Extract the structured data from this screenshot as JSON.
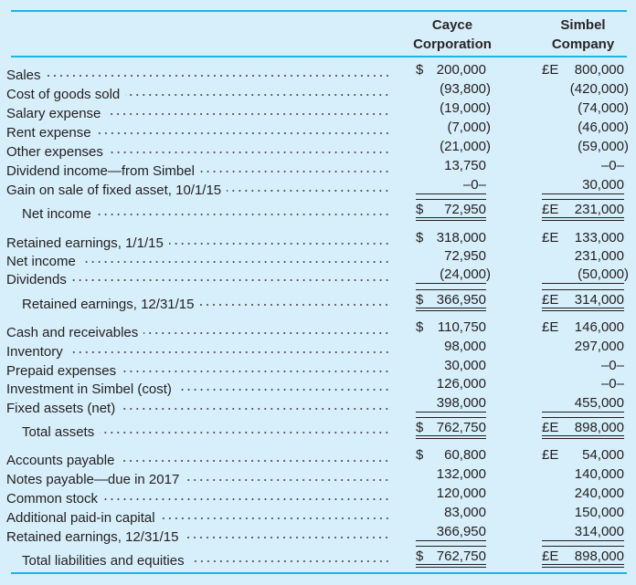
{
  "header": {
    "col1": [
      "Cayce",
      "Corporation"
    ],
    "col2": [
      "Simbel",
      "Company"
    ]
  },
  "rows": [
    {
      "label": "Sales",
      "c1": {
        "cur": "$",
        "amt": "200,000"
      },
      "c2": {
        "cur": "£E",
        "amt": "800,000"
      }
    },
    {
      "label": "Cost of goods sold",
      "c1": {
        "cur": "",
        "amt": "(93,800)"
      },
      "c2": {
        "cur": "",
        "amt": "(420,000)"
      }
    },
    {
      "label": "Salary expense",
      "c1": {
        "cur": "",
        "amt": "(19,000)"
      },
      "c2": {
        "cur": "",
        "amt": "(74,000)"
      }
    },
    {
      "label": "Rent expense",
      "c1": {
        "cur": "",
        "amt": "(7,000)"
      },
      "c2": {
        "cur": "",
        "amt": "(46,000)"
      }
    },
    {
      "label": "Other expenses",
      "c1": {
        "cur": "",
        "amt": "(21,000)"
      },
      "c2": {
        "cur": "",
        "amt": "(59,000)"
      }
    },
    {
      "label": "Dividend income—from Simbel",
      "c1": {
        "cur": "",
        "amt": "13,750"
      },
      "c2": {
        "cur": "",
        "amt": "–0–"
      }
    },
    {
      "label": "Gain on sale of fixed asset, 10/1/15",
      "c1": {
        "cur": "",
        "amt": "–0–"
      },
      "c2": {
        "cur": "",
        "amt": "30,000"
      }
    },
    {
      "label": "Net income",
      "style": "total",
      "c1": {
        "cur": "$",
        "amt": "72,950"
      },
      "c2": {
        "cur": "£E",
        "amt": "231,000"
      }
    },
    {
      "label": "Retained earnings, 1/1/15",
      "c1": {
        "cur": "$",
        "amt": "318,000"
      },
      "c2": {
        "cur": "£E",
        "amt": "133,000"
      }
    },
    {
      "label": "Net income",
      "c1": {
        "cur": "",
        "amt": "72,950"
      },
      "c2": {
        "cur": "",
        "amt": "231,000"
      }
    },
    {
      "label": "Dividends",
      "c1": {
        "cur": "",
        "amt": "(24,000)"
      },
      "c2": {
        "cur": "",
        "amt": "(50,000)"
      }
    },
    {
      "label": "Retained earnings, 12/31/15",
      "style": "total",
      "c1": {
        "cur": "$",
        "amt": "366,950"
      },
      "c2": {
        "cur": "£E",
        "amt": "314,000"
      }
    },
    {
      "label": "Cash and receivables",
      "c1": {
        "cur": "$",
        "amt": "110,750"
      },
      "c2": {
        "cur": "£E",
        "amt": "146,000"
      }
    },
    {
      "label": "Inventory",
      "c1": {
        "cur": "",
        "amt": "98,000"
      },
      "c2": {
        "cur": "",
        "amt": "297,000"
      }
    },
    {
      "label": "Prepaid expenses",
      "c1": {
        "cur": "",
        "amt": "30,000"
      },
      "c2": {
        "cur": "",
        "amt": "–0–"
      }
    },
    {
      "label": "Investment in Simbel (cost)",
      "c1": {
        "cur": "",
        "amt": "126,000"
      },
      "c2": {
        "cur": "",
        "amt": "–0–"
      }
    },
    {
      "label": "Fixed assets (net)",
      "c1": {
        "cur": "",
        "amt": "398,000"
      },
      "c2": {
        "cur": "",
        "amt": "455,000"
      }
    },
    {
      "label": "Total assets",
      "style": "total",
      "c1": {
        "cur": "$",
        "amt": "762,750"
      },
      "c2": {
        "cur": "£E",
        "amt": "898,000"
      }
    },
    {
      "label": "Accounts payable",
      "c1": {
        "cur": "$",
        "amt": "60,800"
      },
      "c2": {
        "cur": "£E",
        "amt": "54,000"
      }
    },
    {
      "label": "Notes payable—due in 2017",
      "c1": {
        "cur": "",
        "amt": "132,000"
      },
      "c2": {
        "cur": "",
        "amt": "140,000"
      }
    },
    {
      "label": "Common stock",
      "c1": {
        "cur": "",
        "amt": "120,000"
      },
      "c2": {
        "cur": "",
        "amt": "240,000"
      }
    },
    {
      "label": "Additional paid-in capital",
      "c1": {
        "cur": "",
        "amt": "83,000"
      },
      "c2": {
        "cur": "",
        "amt": "150,000"
      }
    },
    {
      "label": "Retained earnings, 12/31/15",
      "c1": {
        "cur": "",
        "amt": "366,950"
      },
      "c2": {
        "cur": "",
        "amt": "314,000"
      }
    },
    {
      "label": "Total liabilities and equities",
      "style": "total",
      "c1": {
        "cur": "$",
        "amt": "762,750"
      },
      "c2": {
        "cur": "£E",
        "amt": "898,000"
      }
    }
  ]
}
